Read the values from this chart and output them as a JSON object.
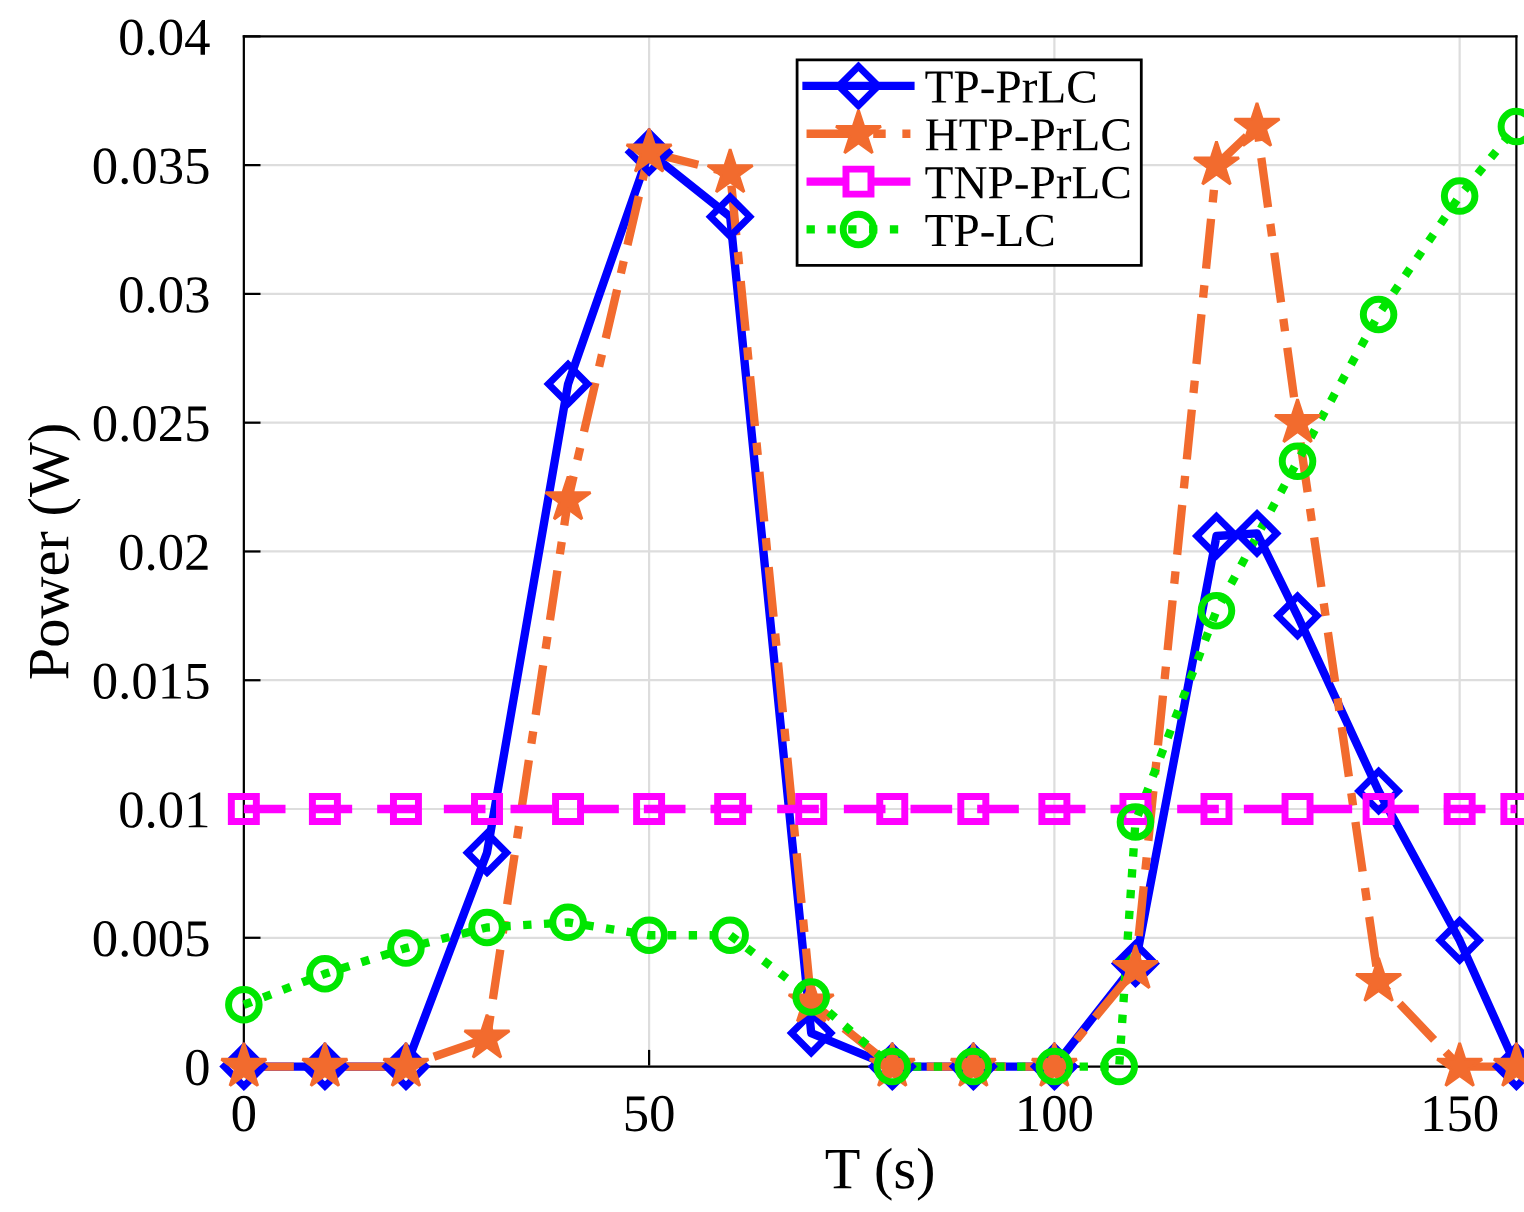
{
  "chart_data": {
    "type": "line",
    "xlabel": "T (s)",
    "ylabel": "Power (W)",
    "xlim": [
      0,
      157
    ],
    "ylim": [
      0,
      0.04
    ],
    "xticks": [
      0,
      50,
      100,
      150
    ],
    "yticks": [
      0,
      0.005,
      0.01,
      0.015,
      0.02,
      0.025,
      0.03,
      0.035,
      0.04
    ],
    "grid": true,
    "legend": "top",
    "series": [
      {
        "name": "TP-PrLC",
        "color": "#0000ff",
        "marker": "diamond",
        "line_style": "solid",
        "x": [
          0,
          10,
          20,
          30,
          40,
          50,
          60,
          70,
          80,
          90,
          100,
          110,
          120,
          125,
          130,
          140,
          150,
          157
        ],
        "values": [
          0,
          0,
          0,
          0.0083,
          0.0265,
          0.0355,
          0.033,
          0.0013,
          0,
          0,
          0,
          0.004,
          0.0206,
          0.0207,
          0.0175,
          0.0107,
          0.0049,
          0
        ]
      },
      {
        "name": "HTP-PrLC",
        "color": "#f26b2e",
        "marker": "star",
        "line_style": "dashdot",
        "x": [
          0,
          10,
          20,
          30,
          40,
          50,
          60,
          70,
          80,
          90,
          100,
          110,
          120,
          125,
          130,
          140,
          150,
          157
        ],
        "values": [
          0,
          0,
          0,
          0.0011,
          0.022,
          0.0355,
          0.0347,
          0.0025,
          0,
          0,
          0,
          0.0038,
          0.035,
          0.0365,
          0.025,
          0.0033,
          0,
          0
        ]
      },
      {
        "name": "TNP-PrLC",
        "color": "#ff00ff",
        "marker": "square",
        "line_style": "dashed",
        "x": [
          0,
          10,
          20,
          30,
          40,
          50,
          60,
          70,
          80,
          90,
          100,
          110,
          120,
          130,
          140,
          150,
          157
        ],
        "values": [
          0.01,
          0.01,
          0.01,
          0.01,
          0.01,
          0.01,
          0.01,
          0.01,
          0.01,
          0.01,
          0.01,
          0.01,
          0.01,
          0.01,
          0.01,
          0.01,
          0.01
        ]
      },
      {
        "name": "TP-LC",
        "color": "#00e600",
        "marker": "circle",
        "line_style": "dotted",
        "x": [
          0,
          10,
          20,
          30,
          40,
          50,
          60,
          70,
          80,
          90,
          100,
          108,
          110,
          120,
          130,
          140,
          150,
          157
        ],
        "values": [
          0.0024,
          0.0036,
          0.0046,
          0.0054,
          0.0056,
          0.0051,
          0.0051,
          0.0027,
          0,
          0,
          0,
          0,
          0.0095,
          0.0177,
          0.0235,
          0.0292,
          0.0338,
          0.0365
        ]
      }
    ]
  }
}
